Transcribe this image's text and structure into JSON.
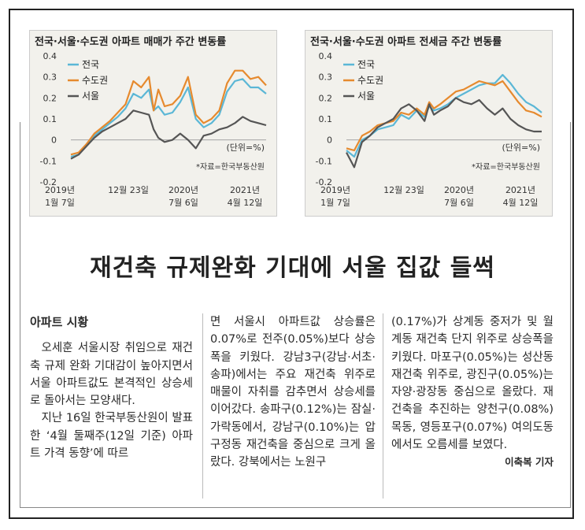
{
  "charts": [
    {
      "title": "전국·서울·수도권 아파트 매매가 주간 변동률",
      "unit_note": "(단위=%)",
      "source_note": "*자료=한국부동산원",
      "x_ticks": [
        {
          "line1": "2019년",
          "line2": "1월 7일"
        },
        {
          "line1": "12월 23일",
          "line2": ""
        },
        {
          "line1": "2020년",
          "line2": "7월 6일"
        },
        {
          "line1": "2021년",
          "line2": "4월 12일"
        }
      ],
      "y_ticks": [
        "0.4",
        "0.3",
        "0.2",
        "0.1",
        "0",
        "-0.1",
        "-0.2"
      ],
      "legend": [
        {
          "label": "전국",
          "color": "#5bb7d6"
        },
        {
          "label": "수도권",
          "color": "#e68a2e"
        },
        {
          "label": "서울",
          "color": "#555555"
        }
      ]
    },
    {
      "title": "전국·서울·수도권 아파트 전세금 주간 변동률",
      "unit_note": "(단위=%)",
      "source_note": "*자료=한국부동산원",
      "x_ticks": [
        {
          "line1": "2019년",
          "line2": "1월 7일"
        },
        {
          "line1": "12월 23일",
          "line2": ""
        },
        {
          "line1": "2020년",
          "line2": "7월 6일"
        },
        {
          "line1": "2021년",
          "line2": "4월 12일"
        }
      ],
      "y_ticks": [
        "0.4",
        "0.3",
        "0.2",
        "0.1",
        "0",
        "-0.1",
        "-0.2"
      ],
      "legend": [
        {
          "label": "전국",
          "color": "#5bb7d6"
        },
        {
          "label": "수도권",
          "color": "#e68a2e"
        },
        {
          "label": "서울",
          "color": "#555555"
        }
      ]
    }
  ],
  "chart_data": [
    {
      "type": "line",
      "title": "전국·서울·수도권 아파트 매매가 주간 변동률",
      "ylim": [
        -0.2,
        0.4
      ],
      "x": [
        0,
        5,
        10,
        15,
        20,
        25,
        30,
        35,
        40,
        45,
        50,
        53,
        56,
        60,
        65,
        70,
        75,
        80,
        85,
        90,
        95,
        100,
        105,
        110,
        115,
        120,
        125
      ],
      "series": [
        {
          "name": "전국",
          "values": [
            -0.08,
            -0.07,
            -0.02,
            0.02,
            0.05,
            0.08,
            0.11,
            0.15,
            0.22,
            0.2,
            0.24,
            0.14,
            0.16,
            0.12,
            0.13,
            0.18,
            0.25,
            0.1,
            0.06,
            0.08,
            0.12,
            0.23,
            0.28,
            0.29,
            0.25,
            0.25,
            0.22
          ]
        },
        {
          "name": "수도권",
          "values": [
            -0.07,
            -0.06,
            -0.02,
            0.03,
            0.06,
            0.09,
            0.13,
            0.17,
            0.28,
            0.25,
            0.3,
            0.14,
            0.24,
            0.16,
            0.17,
            0.21,
            0.3,
            0.12,
            0.08,
            0.1,
            0.14,
            0.27,
            0.33,
            0.33,
            0.29,
            0.3,
            0.26
          ]
        },
        {
          "name": "서울",
          "values": [
            -0.09,
            -0.07,
            -0.03,
            0.01,
            0.04,
            0.06,
            0.08,
            0.1,
            0.14,
            0.13,
            0.12,
            0.05,
            0.01,
            -0.01,
            0.0,
            0.03,
            0.0,
            -0.04,
            0.02,
            0.03,
            0.05,
            0.06,
            0.08,
            0.11,
            0.09,
            0.08,
            0.07
          ]
        }
      ]
    },
    {
      "type": "line",
      "title": "전국·서울·수도권 아파트 전세금 주간 변동률",
      "ylim": [
        -0.2,
        0.4
      ],
      "x": [
        0,
        5,
        10,
        15,
        20,
        25,
        30,
        35,
        40,
        45,
        50,
        53,
        56,
        60,
        65,
        70,
        75,
        80,
        85,
        90,
        95,
        100,
        105,
        110,
        115,
        120,
        125
      ],
      "series": [
        {
          "name": "전국",
          "values": [
            -0.05,
            -0.08,
            0.0,
            0.02,
            0.05,
            0.06,
            0.07,
            0.12,
            0.1,
            0.14,
            0.11,
            0.16,
            0.14,
            0.15,
            0.17,
            0.2,
            0.22,
            0.24,
            0.26,
            0.27,
            0.27,
            0.31,
            0.27,
            0.22,
            0.18,
            0.16,
            0.13
          ]
        },
        {
          "name": "수도권",
          "values": [
            -0.04,
            -0.05,
            0.02,
            0.04,
            0.07,
            0.08,
            0.09,
            0.13,
            0.12,
            0.15,
            0.12,
            0.18,
            0.15,
            0.17,
            0.2,
            0.23,
            0.24,
            0.26,
            0.28,
            0.27,
            0.26,
            0.28,
            0.23,
            0.18,
            0.14,
            0.13,
            0.11
          ]
        },
        {
          "name": "서울",
          "values": [
            -0.06,
            -0.13,
            -0.01,
            0.02,
            0.06,
            0.08,
            0.1,
            0.15,
            0.17,
            0.14,
            0.09,
            0.17,
            0.12,
            0.14,
            0.16,
            0.2,
            0.18,
            0.17,
            0.19,
            0.15,
            0.12,
            0.15,
            0.1,
            0.07,
            0.05,
            0.04,
            0.04
          ]
        }
      ]
    }
  ],
  "headline": "재건축 규제완화 기대에 서울 집값 들썩",
  "article": {
    "section_label": "아파트 시황",
    "col1_p1": "오세훈 서울시장 취임으로 재건축 규제 완화 기대감이 높아지면서 서울 아파트값도 본격적인 상승세로 돌아서는 모양새다.",
    "col1_p2": "지난 16일 한국부동산원이 발표한 ‘4월 둘째주(12일 기준) 아파트 가격 동향’에 따르",
    "col2": "면 서울시 아파트값 상승률은 0.07%로 전주(0.05%)보다 상승폭을 키웠다. 강남3구(강남·서초·송파)에서는 주요 재건축 위주로 매물이 자취를 감추면서 상승세를 이어갔다. 송파구(0.12%)는 잠실·가락동에서, 강남구(0.10%)는 압구정동 재건축을 중심으로 크게 올랐다. 강북에서는 노원구",
    "col3": "(0.17%)가 상계동 중저가 및 월계동 재건축 단지 위주로 상승폭을 키웠다. 마포구(0.05%)는 성산동 재건축 위주로, 광진구(0.05%)는 자양·광장동 중심으로 올랐다. 재건축을 추진하는 양천구(0.08%) 목동, 영등포구(0.07%) 여의도동에서도 오름세를 보였다.",
    "byline": "이축복 기자"
  }
}
